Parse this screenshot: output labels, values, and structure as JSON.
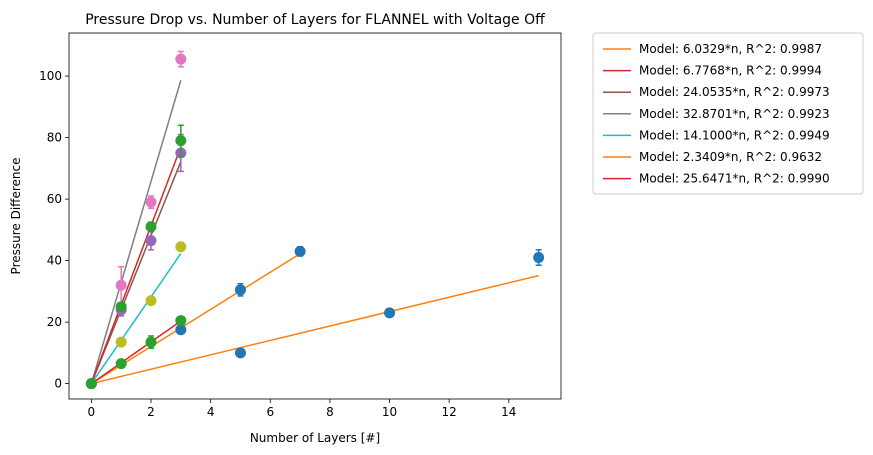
{
  "chart_data": {
    "type": "scatter",
    "title": "Pressure Drop vs. Number of Layers for FLANNEL with Voltage Off",
    "xlabel": "Number of Layers [#]",
    "ylabel": "Pressure Difference",
    "xlim": [
      -0.75,
      15.75
    ],
    "ylim": [
      -5,
      114
    ],
    "xticks": [
      0,
      2,
      4,
      6,
      8,
      10,
      12,
      14
    ],
    "yticks": [
      0,
      20,
      40,
      60,
      80,
      100
    ],
    "legend_position": "outside-upper-right",
    "grid": false,
    "models": [
      {
        "label": "Model: 6.0329*n, R^2: 0.9987",
        "slope": 6.0329,
        "x_max": 7,
        "color": "#ff7f0e"
      },
      {
        "label": "Model: 6.7768*n, R^2: 0.9994",
        "slope": 6.7768,
        "x_max": 3,
        "color": "#d62728"
      },
      {
        "label": "Model: 24.0535*n, R^2: 0.9973",
        "slope": 24.0535,
        "x_max": 3,
        "color": "#8c564b"
      },
      {
        "label": "Model: 32.8701*n, R^2: 0.9923",
        "slope": 32.8701,
        "x_max": 3,
        "color": "#7f7f7f"
      },
      {
        "label": "Model: 14.1000*n, R^2: 0.9949",
        "slope": 14.1,
        "x_max": 3,
        "color": "#17becf"
      },
      {
        "label": "Model: 2.3409*n, R^2: 0.9632",
        "slope": 2.3409,
        "x_max": 15,
        "color": "#ff7f0e"
      },
      {
        "label": "Model: 25.6471*n, R^2: 0.9990",
        "slope": 25.6471,
        "x_max": 3,
        "color": "#d62728"
      }
    ],
    "points": [
      {
        "color": "#1f77b4",
        "x": [
          0,
          5,
          7
        ],
        "y": [
          0,
          30.5,
          43
        ],
        "err": [
          0,
          2,
          1.5
        ]
      },
      {
        "color": "#1f77b4",
        "x": [
          0,
          5,
          10,
          15
        ],
        "y": [
          0,
          10,
          23,
          41
        ],
        "err": [
          0,
          0.5,
          0.5,
          2.5
        ]
      },
      {
        "color": "#1f77b4",
        "x": [
          3
        ],
        "y": [
          17.5
        ],
        "err": [
          1
        ]
      },
      {
        "color": "#2ca02c",
        "x": [
          0,
          1,
          2,
          3
        ],
        "y": [
          0,
          6.5,
          13.5,
          20.5
        ],
        "err": [
          0,
          0.5,
          2,
          1
        ]
      },
      {
        "color": "#bcbd22",
        "x": [
          1,
          2,
          3
        ],
        "y": [
          13.5,
          27,
          44.5
        ],
        "err": [
          0.5,
          1,
          1
        ]
      },
      {
        "color": "#9467bd",
        "x": [
          1,
          2,
          3
        ],
        "y": [
          24,
          46.5,
          75
        ],
        "err": [
          2,
          3,
          6
        ]
      },
      {
        "color": "#e377c2",
        "x": [
          1,
          2,
          3
        ],
        "y": [
          32,
          59,
          105.5
        ],
        "err": [
          6,
          2,
          2.5
        ]
      },
      {
        "color": "#2ca02c",
        "x": [
          1,
          2,
          3
        ],
        "y": [
          25,
          51,
          79
        ],
        "err": [
          1,
          1.5,
          5
        ]
      }
    ]
  }
}
